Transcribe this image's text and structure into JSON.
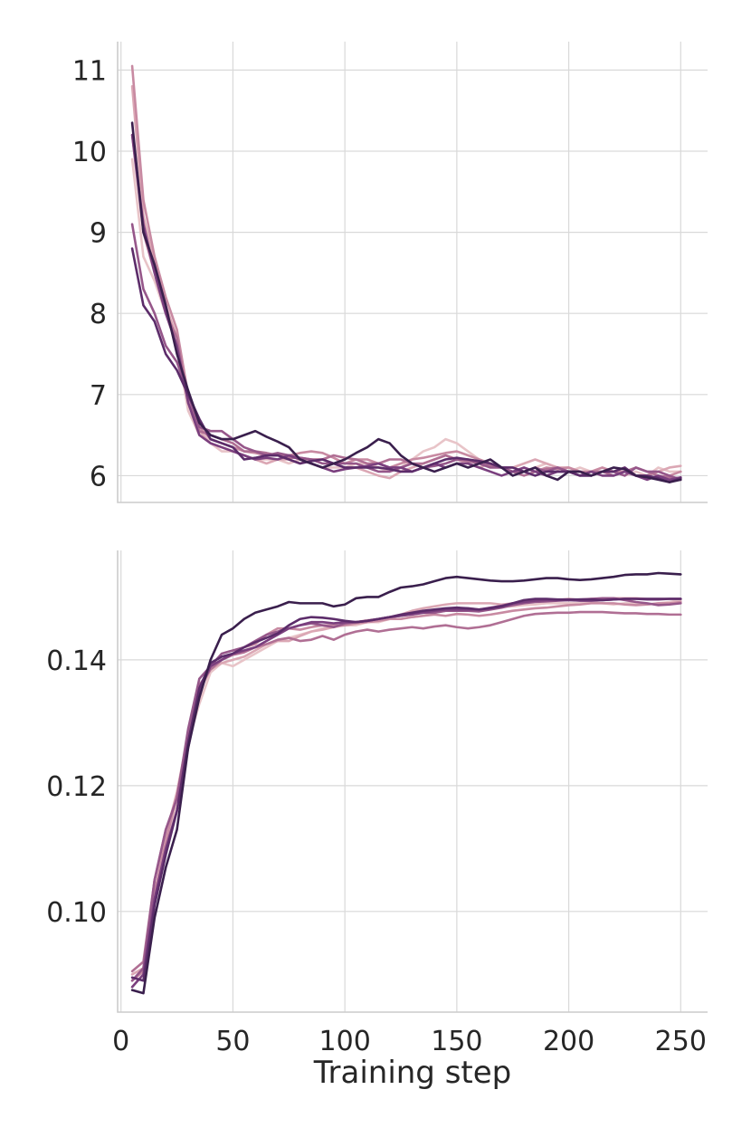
{
  "chart_data": [
    {
      "type": "line",
      "title": "",
      "xlabel": "",
      "ylabel": "",
      "xlim": [
        -1.5,
        262
      ],
      "ylim": [
        5.67,
        11.35
      ],
      "grid": true,
      "xticks": [
        0,
        50,
        100,
        150,
        200,
        250
      ],
      "yticks": [
        6,
        7,
        8,
        9,
        10,
        11
      ],
      "ytick_labels": [
        "6",
        "7",
        "8",
        "9",
        "10",
        "11"
      ],
      "x": [
        5,
        10,
        15,
        20,
        25,
        30,
        35,
        40,
        45,
        50,
        55,
        60,
        65,
        70,
        75,
        80,
        85,
        90,
        95,
        100,
        105,
        110,
        115,
        120,
        125,
        130,
        135,
        140,
        145,
        150,
        155,
        160,
        165,
        170,
        175,
        180,
        185,
        190,
        195,
        200,
        205,
        210,
        215,
        220,
        225,
        230,
        235,
        240,
        245,
        250
      ],
      "series": [
        {
          "color": "#e8c4c8",
          "values": [
            9.9,
            8.7,
            8.4,
            8.0,
            7.6,
            6.8,
            6.5,
            6.4,
            6.3,
            6.3,
            6.25,
            6.2,
            6.2,
            6.2,
            6.15,
            6.2,
            6.15,
            6.1,
            6.1,
            6.1,
            6.15,
            6.15,
            6.1,
            6.05,
            6.1,
            6.2,
            6.3,
            6.35,
            6.45,
            6.4,
            6.3,
            6.2,
            6.15,
            6.1,
            6.1,
            6.05,
            6.1,
            6.15,
            6.1,
            6.05,
            6.1,
            6.05,
            6.1,
            6.05,
            6.0,
            6.05,
            6.0,
            6.1,
            6.05,
            6.05
          ]
        },
        {
          "color": "#dba7b4",
          "values": [
            10.8,
            9.2,
            8.6,
            8.1,
            7.7,
            6.9,
            6.55,
            6.4,
            6.35,
            6.3,
            6.25,
            6.2,
            6.15,
            6.2,
            6.2,
            6.15,
            6.2,
            6.2,
            6.15,
            6.1,
            6.1,
            6.05,
            6.0,
            5.97,
            6.05,
            6.1,
            6.15,
            6.2,
            6.25,
            6.2,
            6.15,
            6.1,
            6.15,
            6.1,
            6.1,
            6.15,
            6.2,
            6.15,
            6.1,
            6.1,
            6.05,
            6.0,
            6.05,
            6.05,
            6.1,
            6.0,
            6.0,
            6.05,
            6.1,
            6.12
          ]
        },
        {
          "color": "#c88aa2",
          "values": [
            11.05,
            9.4,
            8.7,
            8.2,
            7.8,
            7.0,
            6.6,
            6.45,
            6.4,
            6.35,
            6.3,
            6.28,
            6.25,
            6.25,
            6.25,
            6.28,
            6.3,
            6.28,
            6.22,
            6.15,
            6.2,
            6.2,
            6.15,
            6.1,
            6.15,
            6.2,
            6.22,
            6.25,
            6.28,
            6.3,
            6.25,
            6.2,
            6.15,
            6.1,
            6.05,
            6.1,
            6.05,
            6.1,
            6.08,
            6.1,
            6.05,
            6.05,
            6.1,
            6.05,
            6.05,
            6.0,
            6.0,
            6.05,
            6.0,
            6.05
          ]
        },
        {
          "color": "#b06f94",
          "values": [
            10.2,
            9.0,
            8.5,
            8.0,
            7.7,
            6.9,
            6.55,
            6.5,
            6.45,
            6.4,
            6.3,
            6.3,
            6.28,
            6.25,
            6.22,
            6.22,
            6.2,
            6.2,
            6.25,
            6.22,
            6.2,
            6.15,
            6.15,
            6.2,
            6.2,
            6.15,
            6.15,
            6.2,
            6.25,
            6.2,
            6.18,
            6.15,
            6.12,
            6.1,
            6.05,
            6.0,
            6.05,
            6.08,
            6.1,
            6.05,
            6.0,
            6.05,
            6.05,
            6.0,
            6.05,
            6.1,
            6.05,
            6.0,
            5.98,
            5.97
          ]
        },
        {
          "color": "#96578a",
          "values": [
            9.1,
            8.3,
            8.0,
            7.6,
            7.4,
            7.0,
            6.6,
            6.55,
            6.55,
            6.45,
            6.35,
            6.3,
            6.25,
            6.28,
            6.25,
            6.22,
            6.2,
            6.15,
            6.15,
            6.15,
            6.15,
            6.1,
            6.05,
            6.05,
            6.1,
            6.15,
            6.1,
            6.12,
            6.15,
            6.2,
            6.2,
            6.15,
            6.1,
            6.1,
            6.05,
            6.05,
            6.1,
            6.05,
            6.1,
            6.05,
            6.05,
            6.0,
            6.05,
            6.05,
            6.0,
            6.1,
            6.05,
            6.05,
            6.0,
            5.95
          ]
        },
        {
          "color": "#7a3f7e",
          "values": [
            10.2,
            9.1,
            8.5,
            8.0,
            7.6,
            6.9,
            6.5,
            6.4,
            6.35,
            6.3,
            6.25,
            6.2,
            6.22,
            6.2,
            6.25,
            6.2,
            6.15,
            6.1,
            6.05,
            6.08,
            6.1,
            6.12,
            6.15,
            6.1,
            6.1,
            6.05,
            6.1,
            6.15,
            6.1,
            6.15,
            6.15,
            6.1,
            6.05,
            6.0,
            6.05,
            6.1,
            6.05,
            6.0,
            6.05,
            6.05,
            6.0,
            6.05,
            6.0,
            6.0,
            6.05,
            6.0,
            5.95,
            6.0,
            5.95,
            5.98
          ]
        },
        {
          "color": "#5c2c6a",
          "values": [
            8.8,
            8.1,
            7.9,
            7.5,
            7.3,
            7.0,
            6.7,
            6.45,
            6.4,
            6.35,
            6.2,
            6.22,
            6.25,
            6.25,
            6.2,
            6.15,
            6.18,
            6.2,
            6.15,
            6.1,
            6.1,
            6.1,
            6.1,
            6.08,
            6.05,
            6.05,
            6.1,
            6.15,
            6.2,
            6.22,
            6.2,
            6.18,
            6.15,
            6.1,
            6.1,
            6.05,
            6.0,
            6.05,
            6.05,
            6.05,
            6.0,
            6.0,
            6.05,
            6.05,
            6.1,
            6.0,
            6.0,
            5.97,
            5.92,
            5.97
          ]
        },
        {
          "color": "#3a1f4d",
          "values": [
            10.35,
            9.0,
            8.6,
            8.1,
            7.5,
            7.05,
            6.65,
            6.5,
            6.45,
            6.45,
            6.5,
            6.55,
            6.48,
            6.42,
            6.35,
            6.2,
            6.15,
            6.1,
            6.15,
            6.2,
            6.28,
            6.35,
            6.45,
            6.4,
            6.25,
            6.15,
            6.1,
            6.05,
            6.1,
            6.15,
            6.1,
            6.15,
            6.2,
            6.1,
            6.0,
            6.05,
            6.1,
            6.0,
            5.95,
            6.05,
            6.05,
            6.0,
            6.05,
            6.1,
            6.08,
            6.0,
            5.98,
            5.95,
            5.92,
            5.95
          ]
        }
      ]
    },
    {
      "type": "line",
      "title": "",
      "xlabel": "Training step",
      "ylabel": "",
      "xlim": [
        -1.5,
        262
      ],
      "ylim": [
        0.084,
        0.1574
      ],
      "grid": true,
      "xticks": [
        0,
        50,
        100,
        150,
        200,
        250
      ],
      "xtick_labels": [
        "0",
        "50",
        "100",
        "150",
        "200",
        "250"
      ],
      "yticks": [
        0.1,
        0.12,
        0.14
      ],
      "ytick_labels": [
        "0.10",
        "0.12",
        "0.14"
      ],
      "x": [
        5,
        10,
        15,
        20,
        25,
        30,
        35,
        40,
        45,
        50,
        55,
        60,
        65,
        70,
        75,
        80,
        85,
        90,
        95,
        100,
        105,
        110,
        115,
        120,
        125,
        130,
        135,
        140,
        145,
        150,
        155,
        160,
        165,
        170,
        175,
        180,
        185,
        190,
        195,
        200,
        205,
        210,
        215,
        220,
        225,
        230,
        235,
        240,
        245,
        250
      ],
      "series": [
        {
          "color": "#e8c4c8",
          "values": [
            0.088,
            0.09,
            0.102,
            0.11,
            0.118,
            0.127,
            0.133,
            0.138,
            0.1395,
            0.139,
            0.14,
            0.141,
            0.142,
            0.143,
            0.1435,
            0.144,
            0.1445,
            0.145,
            0.1455,
            0.1455,
            0.1455,
            0.146,
            0.146,
            0.1465,
            0.1465,
            0.1468,
            0.147,
            0.1475,
            0.1478,
            0.148,
            0.1482,
            0.148,
            0.1483,
            0.1485,
            0.1485,
            0.1487,
            0.1488,
            0.149,
            0.149,
            0.149,
            0.149,
            0.1492,
            0.149,
            0.1488,
            0.149,
            0.149,
            0.1488,
            0.149,
            0.1492,
            0.1495
          ]
        },
        {
          "color": "#dba7b4",
          "values": [
            0.09,
            0.091,
            0.105,
            0.112,
            0.119,
            0.128,
            0.135,
            0.1385,
            0.1395,
            0.14,
            0.1405,
            0.1415,
            0.1425,
            0.143,
            0.143,
            0.1438,
            0.1445,
            0.1448,
            0.1452,
            0.1455,
            0.146,
            0.1463,
            0.1465,
            0.1468,
            0.1472,
            0.1478,
            0.1482,
            0.1485,
            0.1488,
            0.149,
            0.149,
            0.149,
            0.149,
            0.1488,
            0.149,
            0.1492,
            0.1495,
            0.1495,
            0.1495,
            0.1497,
            0.1495,
            0.1497,
            0.1497,
            0.1498,
            0.1498,
            0.1498,
            0.1497,
            0.1497,
            0.1497,
            0.1497
          ]
        },
        {
          "color": "#c88aa2",
          "values": [
            0.089,
            0.0905,
            0.103,
            0.111,
            0.1185,
            0.1275,
            0.1355,
            0.1385,
            0.14,
            0.141,
            0.142,
            0.1425,
            0.144,
            0.145,
            0.145,
            0.1448,
            0.1452,
            0.1455,
            0.1455,
            0.1455,
            0.1458,
            0.146,
            0.1462,
            0.1465,
            0.1465,
            0.1468,
            0.147,
            0.1472,
            0.147,
            0.1473,
            0.1472,
            0.147,
            0.1472,
            0.1475,
            0.1478,
            0.148,
            0.1482,
            0.1483,
            0.1485,
            0.1487,
            0.1488,
            0.149,
            0.149,
            0.149,
            0.1488,
            0.1487,
            0.1488,
            0.149,
            0.149,
            0.1492
          ]
        },
        {
          "color": "#b06f94",
          "values": [
            0.0905,
            0.092,
            0.105,
            0.113,
            0.118,
            0.127,
            0.136,
            0.1385,
            0.14,
            0.1408,
            0.1412,
            0.142,
            0.1425,
            0.1432,
            0.1435,
            0.143,
            0.1432,
            0.1438,
            0.1432,
            0.144,
            0.1445,
            0.1448,
            0.1445,
            0.1448,
            0.145,
            0.1452,
            0.145,
            0.1453,
            0.1455,
            0.1452,
            0.145,
            0.1452,
            0.1455,
            0.146,
            0.1465,
            0.147,
            0.1473,
            0.1474,
            0.1475,
            0.1475,
            0.1476,
            0.1476,
            0.1476,
            0.1475,
            0.1474,
            0.1474,
            0.1473,
            0.1473,
            0.1472,
            0.1472
          ]
        },
        {
          "color": "#96578a",
          "values": [
            0.089,
            0.091,
            0.105,
            0.113,
            0.118,
            0.129,
            0.137,
            0.139,
            0.141,
            0.1415,
            0.142,
            0.143,
            0.144,
            0.1445,
            0.145,
            0.1455,
            0.1458,
            0.1455,
            0.1452,
            0.1458,
            0.146,
            0.1462,
            0.1465,
            0.1468,
            0.147,
            0.1472,
            0.1475,
            0.1475,
            0.1478,
            0.1478,
            0.1478,
            0.1477,
            0.148,
            0.1483,
            0.1487,
            0.149,
            0.1492,
            0.1493,
            0.1494,
            0.1495,
            0.1496,
            0.1497,
            0.1498,
            0.1498,
            0.1495,
            0.1492,
            0.149,
            0.1487,
            0.1488,
            0.149
          ]
        },
        {
          "color": "#7a3f7e",
          "values": [
            0.088,
            0.09,
            0.102,
            0.11,
            0.116,
            0.126,
            0.135,
            0.139,
            0.14,
            0.141,
            0.1415,
            0.142,
            0.143,
            0.144,
            0.145,
            0.1455,
            0.146,
            0.146,
            0.1458,
            0.146,
            0.146,
            0.1462,
            0.1465,
            0.1468,
            0.147,
            0.1473,
            0.1475,
            0.1478,
            0.148,
            0.148,
            0.148,
            0.148,
            0.1483,
            0.1486,
            0.149,
            0.1492,
            0.1494,
            0.1495,
            0.1495,
            0.1495,
            0.1494,
            0.1494,
            0.1495,
            0.1496,
            0.1497,
            0.1497,
            0.1496,
            0.1496,
            0.1497,
            0.1497
          ]
        },
        {
          "color": "#5c2c6a",
          "values": [
            0.0895,
            0.089,
            0.101,
            0.109,
            0.116,
            0.127,
            0.1355,
            0.1395,
            0.1405,
            0.141,
            0.142,
            0.1428,
            0.1435,
            0.1442,
            0.1455,
            0.1465,
            0.1468,
            0.1467,
            0.1465,
            0.1462,
            0.146,
            0.1462,
            0.1465,
            0.1468,
            0.1472,
            0.1475,
            0.1478,
            0.148,
            0.1482,
            0.1483,
            0.1482,
            0.148,
            0.1482,
            0.1485,
            0.149,
            0.1495,
            0.1497,
            0.1497,
            0.1496,
            0.1496,
            0.1496,
            0.1496,
            0.1495,
            0.1496,
            0.1497,
            0.1497,
            0.1497,
            0.1497,
            0.1497,
            0.1497
          ]
        },
        {
          "color": "#3a1f4d",
          "values": [
            0.0875,
            0.087,
            0.099,
            0.107,
            0.113,
            0.126,
            0.134,
            0.14,
            0.144,
            0.145,
            0.1465,
            0.1475,
            0.148,
            0.1485,
            0.1492,
            0.149,
            0.149,
            0.149,
            0.1485,
            0.1488,
            0.1498,
            0.15,
            0.15,
            0.1508,
            0.1515,
            0.1517,
            0.152,
            0.1525,
            0.153,
            0.1532,
            0.153,
            0.1528,
            0.1526,
            0.1525,
            0.1525,
            0.1526,
            0.1528,
            0.153,
            0.153,
            0.1528,
            0.1527,
            0.1528,
            0.153,
            0.1532,
            0.1535,
            0.1536,
            0.1536,
            0.1538,
            0.1537,
            0.1536
          ]
        }
      ]
    }
  ]
}
